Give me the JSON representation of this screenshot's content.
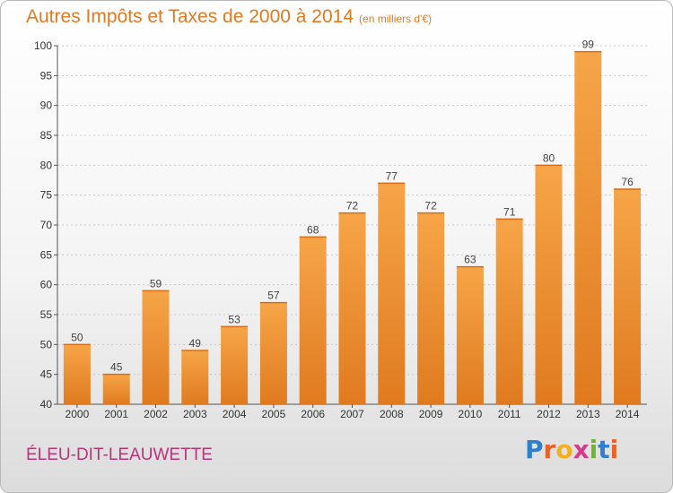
{
  "title": "Autres Impôts et Taxes de 2000 à 2014",
  "unit_note": "(en milliers d'€)",
  "commune": "ÉLEU-DIT-LEAUWETTE",
  "logo": {
    "text": "Proxiti",
    "letters": [
      "P",
      "r",
      "o",
      "x",
      "i",
      "t",
      "i"
    ],
    "colors": [
      "#2f7fd0",
      "#e8632a",
      "#f2b01e",
      "#d43d8a",
      "#6bb82e",
      "#2f7fd0",
      "#e8632a"
    ]
  },
  "colors": {
    "bar_light": "#f6a548",
    "bar_dark": "#e07a1f",
    "grid": "#c8c8c8",
    "title": "#e07a1f",
    "commune": "#b8357a"
  },
  "chart_data": {
    "type": "bar",
    "title": "Autres Impôts et Taxes de 2000 à 2014",
    "xlabel": "",
    "ylabel": "",
    "categories": [
      "2000",
      "2001",
      "2002",
      "2003",
      "2004",
      "2005",
      "2006",
      "2007",
      "2008",
      "2009",
      "2010",
      "2011",
      "2012",
      "2013",
      "2014"
    ],
    "values": [
      50,
      45,
      59,
      49,
      53,
      57,
      68,
      72,
      77,
      72,
      63,
      71,
      80,
      99,
      76
    ],
    "ylim": [
      40,
      100
    ],
    "yticks": [
      40,
      45,
      50,
      55,
      60,
      65,
      70,
      75,
      80,
      85,
      90,
      95,
      100
    ],
    "grid": true
  }
}
